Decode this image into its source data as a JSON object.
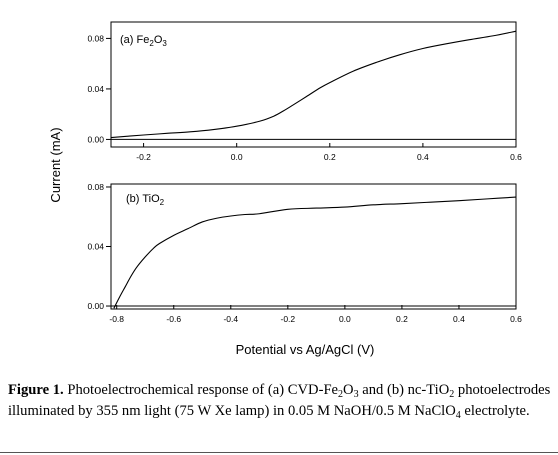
{
  "chart_data": [
    {
      "type": "line",
      "panel": "(a)",
      "material_text": "Fe",
      "material_sub1": "2",
      "material_text2": "O",
      "material_sub2": "3",
      "xlim": [
        -0.27,
        0.6
      ],
      "ylim": [
        -0.006,
        0.093
      ],
      "xticks": [
        "-0.2",
        "0.0",
        "0.2",
        "0.4",
        "0.6"
      ],
      "xtick_values": [
        -0.2,
        0.0,
        0.2,
        0.4,
        0.6
      ],
      "yticks": [
        "0.00",
        "0.04",
        "0.08"
      ],
      "ytick_values": [
        0.0,
        0.04,
        0.08
      ],
      "series": [
        {
          "x": [
            -0.27,
            -0.2,
            -0.15,
            -0.1,
            -0.05,
            0.0,
            0.05,
            0.08,
            0.1,
            0.12,
            0.15,
            0.18,
            0.2,
            0.25,
            0.3,
            0.35,
            0.4,
            0.45,
            0.5,
            0.55,
            0.6
          ],
          "y": [
            0.0015,
            0.0035,
            0.0048,
            0.006,
            0.0078,
            0.0105,
            0.0145,
            0.0185,
            0.0225,
            0.027,
            0.034,
            0.041,
            0.045,
            0.054,
            0.061,
            0.067,
            0.072,
            0.0757,
            0.079,
            0.082,
            0.0857
          ]
        },
        {
          "x": [
            -0.27,
            0.6
          ],
          "y": [
            0.0,
            0.0
          ]
        }
      ]
    },
    {
      "type": "line",
      "panel": "(b)",
      "material_text": "TiO",
      "material_sub1": "2",
      "xlim": [
        -0.82,
        0.6
      ],
      "ylim": [
        -0.002,
        0.082
      ],
      "xticks": [
        "-0.8",
        "-0.6",
        "-0.4",
        "-0.2",
        "0.0",
        "0.2",
        "0.4",
        "0.6"
      ],
      "xtick_values": [
        -0.8,
        -0.6,
        -0.4,
        -0.2,
        0.0,
        0.2,
        0.4,
        0.6
      ],
      "yticks": [
        "0.00",
        "0.04",
        "0.08"
      ],
      "ytick_values": [
        0.0,
        0.04,
        0.08
      ],
      "xlabel": "Potential vs Ag/AgCl (V)",
      "series": [
        {
          "x": [
            -0.81,
            -0.79,
            -0.77,
            -0.75,
            -0.73,
            -0.7,
            -0.67,
            -0.65,
            -0.6,
            -0.55,
            -0.5,
            -0.45,
            -0.4,
            -0.35,
            -0.3,
            -0.2,
            -0.1,
            0.0,
            0.1,
            0.2,
            0.3,
            0.4,
            0.5,
            0.6
          ],
          "y": [
            -0.0015,
            0.006,
            0.013,
            0.02,
            0.026,
            0.033,
            0.039,
            0.042,
            0.0475,
            0.052,
            0.0565,
            0.059,
            0.0605,
            0.0615,
            0.062,
            0.065,
            0.0658,
            0.0665,
            0.068,
            0.0688,
            0.0698,
            0.0708,
            0.072,
            0.0732
          ]
        },
        {
          "x": [
            -0.82,
            0.6
          ],
          "y": [
            0.0,
            0.0
          ]
        }
      ]
    }
  ],
  "ylabel": "Current (mA)",
  "caption": {
    "figure_label": "Figure 1.",
    "p1": "Photoelectrochemical response of (a) CVD-Fe",
    "s1": "2",
    "p2": "O",
    "s2": "3",
    "p3": " and (b) nc-TiO",
    "s3": "2",
    "p4": " photoelectrodes illuminated by 355 nm light (75 W Xe lamp) in 0.05 M NaOH/0.5 M NaClO",
    "s4": "4",
    "p5": " electrolyte."
  }
}
